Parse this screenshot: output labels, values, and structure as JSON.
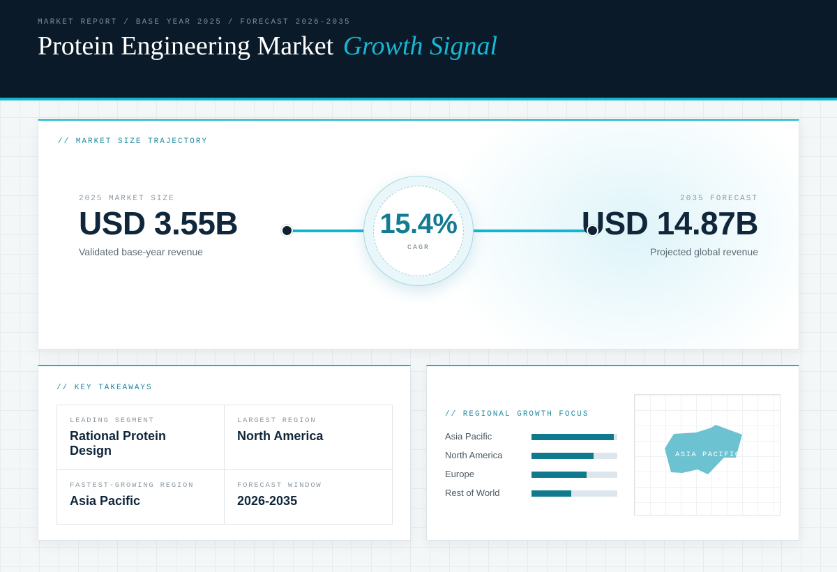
{
  "header": {
    "breadcrumb": "MARKET REPORT / BASE YEAR 2025 / FORECAST 2026-2035",
    "title_main": "Protein Engineering Market",
    "title_accent": "Growth Signal"
  },
  "trajectory": {
    "section_label": "// MARKET SIZE TRAJECTORY",
    "start": {
      "caption": "2025 MARKET SIZE",
      "value": "USD 3.55B",
      "subtitle": "Validated base-year revenue"
    },
    "end": {
      "caption": "2035 FORECAST",
      "value": "USD 14.87B",
      "subtitle": "Projected global revenue"
    },
    "cagr": {
      "value": "15.4%",
      "label": "CAGR"
    }
  },
  "takeaways": {
    "section_label": "// KEY TAKEAWAYS",
    "items": [
      {
        "caption": "LEADING SEGMENT",
        "value": "Rational Protein Design"
      },
      {
        "caption": "LARGEST REGION",
        "value": "North America"
      },
      {
        "caption": "FASTEST-GROWING REGION",
        "value": "Asia Pacific"
      },
      {
        "caption": "FORECAST WINDOW",
        "value": "2026-2035"
      }
    ]
  },
  "regional": {
    "section_label": "// REGIONAL GROWTH FOCUS",
    "bars": [
      {
        "name": "Asia Pacific",
        "share": 0.96
      },
      {
        "name": "North America",
        "share": 0.72
      },
      {
        "name": "Europe",
        "share": 0.64
      },
      {
        "name": "Rest of World",
        "share": 0.46
      }
    ],
    "map_label": "ASIA PACIFIC"
  },
  "colors": {
    "accent": "#13b6d2",
    "header_bg": "#0a1a28",
    "bar_fill": "#0f7a8e",
    "map_shape": "#6cc2d0"
  }
}
